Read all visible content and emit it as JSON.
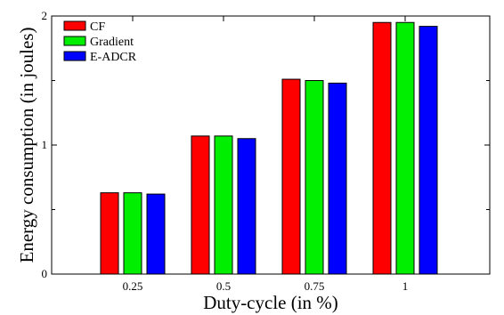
{
  "chart_data": {
    "type": "bar",
    "title": "",
    "xlabel": "Duty-cycle (in %)",
    "ylabel": "Energy consumption (in joules)",
    "categories": [
      "0.25",
      "0.5",
      "0.75",
      "1"
    ],
    "ylim": [
      0,
      2
    ],
    "y_major_ticks": [
      0,
      1,
      2
    ],
    "y_minor_ticks": [
      0.5,
      1.5
    ],
    "grid": false,
    "legend_position": "top-left",
    "series": [
      {
        "name": "CF",
        "color": "#ff0000",
        "values": [
          0.63,
          1.07,
          1.51,
          1.95
        ]
      },
      {
        "name": "Gradient",
        "color": "#00ee00",
        "values": [
          0.63,
          1.07,
          1.5,
          1.95
        ]
      },
      {
        "name": "E-ADCR",
        "color": "#0000ff",
        "values": [
          0.62,
          1.05,
          1.48,
          1.92
        ]
      }
    ]
  }
}
